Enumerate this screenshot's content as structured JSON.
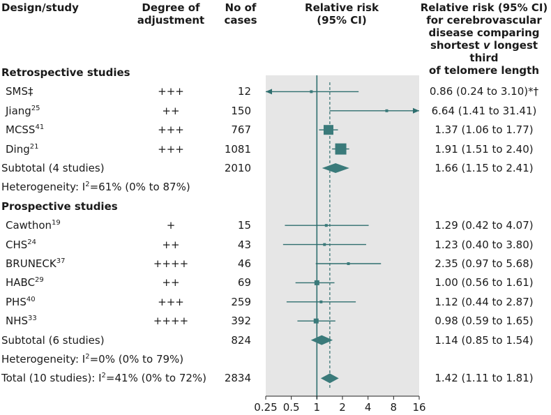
{
  "headers": {
    "design": "Design/study",
    "adjustment": [
      "Degree of",
      "adjustment"
    ],
    "cases": [
      "No of",
      "cases"
    ],
    "rr": [
      "Relative risk",
      "(95% CI)"
    ],
    "rr_text": [
      "Relative risk (95% CI)",
      "for cerebrovascular",
      "disease comparing",
      "shortest v longest third",
      "of telomere length"
    ]
  },
  "rows": [
    {
      "kind": "section",
      "label": "Retrospective studies"
    },
    {
      "kind": "study",
      "name": "SMS‡",
      "sup": "",
      "adj": "+++",
      "cases": "12",
      "rr": 0.86,
      "lo": 0.24,
      "hi": 3.1,
      "text": "0.86 (0.24 to 3.10)*†",
      "arrowLeft": true
    },
    {
      "kind": "study",
      "name": "Jiang",
      "sup": "25",
      "adj": "++",
      "cases": "150",
      "rr": 6.64,
      "lo": 1.41,
      "hi": 31.41,
      "text": "6.64 (1.41 to 31.41)",
      "arrowRight": true
    },
    {
      "kind": "study",
      "name": "MCSS",
      "sup": "41",
      "adj": "+++",
      "cases": "767",
      "rr": 1.37,
      "lo": 1.06,
      "hi": 1.77,
      "text": "1.37 (1.06 to 1.77)",
      "weight": 2
    },
    {
      "kind": "study",
      "name": "Ding",
      "sup": "21",
      "adj": "+++",
      "cases": "1081",
      "rr": 1.91,
      "lo": 1.51,
      "hi": 2.4,
      "text": "1.91 (1.51 to 2.40)",
      "weight": 3
    },
    {
      "kind": "subtotal",
      "name": "Subtotal (4 studies)",
      "cases": "2010",
      "rr": 1.66,
      "lo": 1.15,
      "hi": 2.41,
      "text": "1.66 (1.15 to 2.41)"
    },
    {
      "kind": "het",
      "label": "Heterogeneity: I",
      "sup": "2",
      "rest": "=61% (0% to 87%)"
    },
    {
      "kind": "section",
      "label": "Prospective studies"
    },
    {
      "kind": "study",
      "name": "Cawthon",
      "sup": "19",
      "adj": "+",
      "cases": "15",
      "rr": 1.29,
      "lo": 0.42,
      "hi": 4.07,
      "text": "1.29 (0.42 to 4.07)"
    },
    {
      "kind": "study",
      "name": "CHS",
      "sup": "24",
      "adj": "++",
      "cases": "43",
      "rr": 1.23,
      "lo": 0.4,
      "hi": 3.8,
      "text": "1.23 (0.40 to 3.80)"
    },
    {
      "kind": "study",
      "name": "BRUNECK",
      "sup": "37",
      "adj": "++++",
      "cases": "46",
      "rr": 2.35,
      "lo": 0.97,
      "hi": 5.68,
      "text": "2.35 (0.97 to 5.68)"
    },
    {
      "kind": "study",
      "name": "HABC",
      "sup": "29",
      "adj": "++",
      "cases": "69",
      "rr": 1.0,
      "lo": 0.56,
      "hi": 1.61,
      "text": "1.00 (0.56 to 1.61)",
      "weight": 1
    },
    {
      "kind": "study",
      "name": "PHS",
      "sup": "40",
      "adj": "+++",
      "cases": "259",
      "rr": 1.12,
      "lo": 0.44,
      "hi": 2.87,
      "text": "1.12 (0.44 to 2.87)"
    },
    {
      "kind": "study",
      "name": "NHS",
      "sup": "33",
      "adj": "++++",
      "cases": "392",
      "rr": 0.98,
      "lo": 0.59,
      "hi": 1.65,
      "text": "0.98 (0.59 to 1.65)",
      "weight": 1
    },
    {
      "kind": "subtotal",
      "name": "Subtotal (6 studies)",
      "cases": "824",
      "rr": 1.14,
      "lo": 0.85,
      "hi": 1.54,
      "text": "1.14 (0.85 to 1.54)"
    },
    {
      "kind": "het",
      "label": "Heterogeneity: I",
      "sup": "2",
      "rest": "=0% (0% to 79%)"
    },
    {
      "kind": "total",
      "name": "Total (10 studies): I",
      "sup": "2",
      "rest": "=41% (0% to 72%)",
      "cases": "2834",
      "rr": 1.42,
      "lo": 1.11,
      "hi": 1.81,
      "text": "1.42 (1.11 to 1.81)"
    }
  ],
  "chart_data": {
    "type": "forest",
    "scale": "log",
    "xlim": [
      0.25,
      16
    ],
    "ticks": [
      0.25,
      0.5,
      1,
      2,
      4,
      8,
      16
    ],
    "tick_labels": [
      "0.25",
      "0.5",
      "1",
      "2",
      "4",
      "8",
      "16"
    ],
    "reference_line": 1,
    "overall_line": 1.42,
    "colors": {
      "marker": "#3a7a7a",
      "panel": "#e6e6e6",
      "line": "#2e6e6e"
    }
  }
}
